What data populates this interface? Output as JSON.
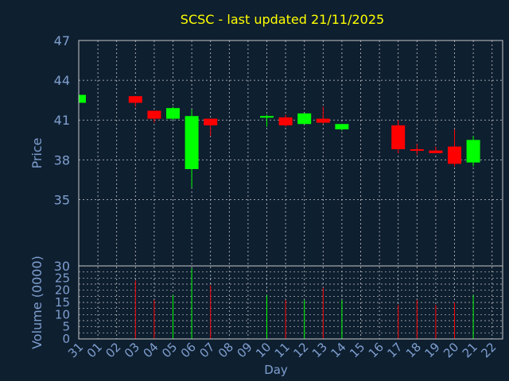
{
  "chart_data": {
    "type": "candlestick",
    "title": "SCSC - last updated 21/11/2025",
    "xlabel": "Day",
    "ylabel_price": "Price",
    "ylabel_volume": "Volume (0000)",
    "price_ylim": [
      30,
      47
    ],
    "price_ticks": [
      "47",
      "44",
      "41",
      "38",
      "35",
      "30"
    ],
    "price_tick_values": [
      47,
      44,
      41,
      38,
      35,
      30
    ],
    "volume_ylim": [
      0,
      30
    ],
    "volume_ticks": [
      "25",
      "20",
      "15",
      "10",
      "5",
      "0"
    ],
    "volume_tick_values": [
      25,
      20,
      15,
      10,
      5,
      0
    ],
    "x_ticks": [
      "31",
      "01",
      "02",
      "03",
      "04",
      "05",
      "06",
      "07",
      "08",
      "09",
      "10",
      "11",
      "12",
      "13",
      "14",
      "15",
      "16",
      "17",
      "18",
      "19",
      "20",
      "21",
      "22"
    ],
    "grid": true,
    "colors": {
      "background": "#0e1f30",
      "title": "#ffff00",
      "axis_text": "#7f9fcf",
      "frame": "#c8c8c8",
      "grid": "#c8c8c8",
      "up": "#00ff00",
      "down": "#ff0000"
    },
    "candles": [
      {
        "day": "31",
        "open": 42.3,
        "high": 42.9,
        "low": 42.3,
        "close": 42.9,
        "volume": 0
      },
      {
        "day": "03",
        "open": 42.8,
        "high": 42.8,
        "low": 42.0,
        "close": 42.3,
        "volume": 24
      },
      {
        "day": "04",
        "open": 41.7,
        "high": 41.7,
        "low": 40.8,
        "close": 41.1,
        "volume": 16
      },
      {
        "day": "05",
        "open": 41.1,
        "high": 42.0,
        "low": 41.0,
        "close": 41.9,
        "volume": 18
      },
      {
        "day": "06",
        "open": 37.3,
        "high": 41.8,
        "low": 35.9,
        "close": 41.3,
        "volume": 29
      },
      {
        "day": "07",
        "open": 41.1,
        "high": 41.1,
        "low": 39.8,
        "close": 40.6,
        "volume": 22
      },
      {
        "day": "10",
        "open": 41.2,
        "high": 41.4,
        "low": 40.5,
        "close": 41.3,
        "volume": 18
      },
      {
        "day": "11",
        "open": 41.2,
        "high": 41.4,
        "low": 40.5,
        "close": 40.6,
        "volume": 16
      },
      {
        "day": "12",
        "open": 40.7,
        "high": 41.5,
        "low": 40.7,
        "close": 41.5,
        "volume": 16
      },
      {
        "day": "13",
        "open": 41.1,
        "high": 42.0,
        "low": 40.7,
        "close": 40.8,
        "volume": 21
      },
      {
        "day": "14",
        "open": 40.3,
        "high": 40.7,
        "low": 40.2,
        "close": 40.7,
        "volume": 16
      },
      {
        "day": "17",
        "open": 40.6,
        "high": 41.0,
        "low": 38.5,
        "close": 38.8,
        "volume": 14
      },
      {
        "day": "18",
        "open": 38.8,
        "high": 39.2,
        "low": 38.4,
        "close": 38.7,
        "volume": 16
      },
      {
        "day": "19",
        "open": 38.7,
        "high": 39.0,
        "low": 38.5,
        "close": 38.5,
        "volume": 14
      },
      {
        "day": "20",
        "open": 39.0,
        "high": 40.3,
        "low": 37.5,
        "close": 37.7,
        "volume": 15
      },
      {
        "day": "21",
        "open": 37.8,
        "high": 39.8,
        "low": 37.5,
        "close": 39.5,
        "volume": 18
      }
    ]
  }
}
